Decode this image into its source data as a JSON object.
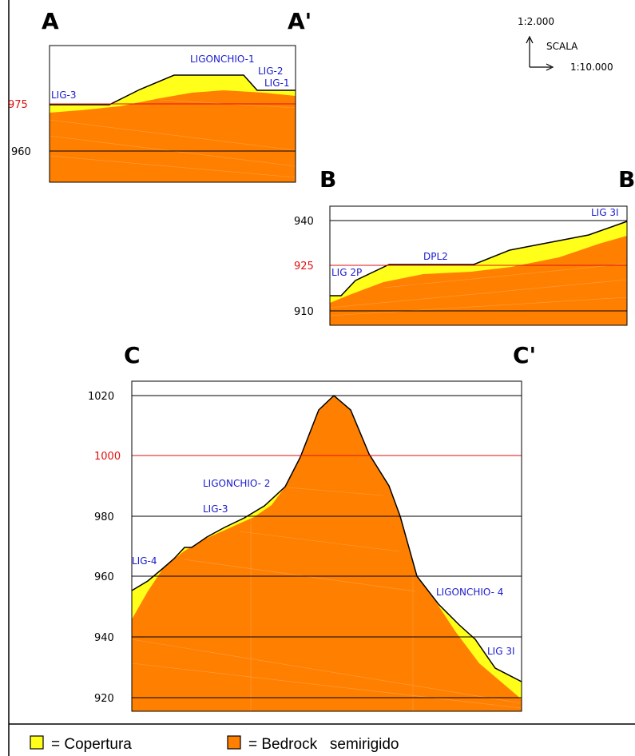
{
  "scale": {
    "vertical": "1:2.000",
    "label": "SCALA",
    "horizontal": "1:10.000"
  },
  "colors": {
    "cover": "#ffff1a",
    "bedrock": "#ff8000",
    "reference_line": "#e01010",
    "well_text": "#1a1ad0"
  },
  "sections": [
    {
      "id": "A",
      "start_label": "A",
      "end_label": "A'",
      "ticks": [
        {
          "value": "975",
          "highlight": true
        },
        {
          "value": "960",
          "highlight": false
        }
      ],
      "wells": [
        "LIGONCHIO-1",
        "LIG-2",
        "LIG-1",
        "LIG-3"
      ]
    },
    {
      "id": "B",
      "start_label": "B",
      "end_label": "B'",
      "ticks": [
        {
          "value": "940",
          "highlight": false
        },
        {
          "value": "925",
          "highlight": true
        },
        {
          "value": "910",
          "highlight": false
        }
      ],
      "wells": [
        "LIG 3I",
        "DPL2",
        "LIG 2P"
      ]
    },
    {
      "id": "C",
      "start_label": "C",
      "end_label": "C'",
      "ticks": [
        {
          "value": "1020",
          "highlight": false
        },
        {
          "value": "1000",
          "highlight": true
        },
        {
          "value": "980",
          "highlight": false
        },
        {
          "value": "960",
          "highlight": false
        },
        {
          "value": "940",
          "highlight": false
        },
        {
          "value": "920",
          "highlight": false
        }
      ],
      "wells": [
        "LIGONCHIO- 2",
        "LIG-3",
        "LIG-4",
        "LIGONCHIO- 4",
        "LIG 3I"
      ]
    }
  ],
  "legend": {
    "cover_label": "= Copertura",
    "bedrock_label": "= Bedrock   semirigido"
  }
}
